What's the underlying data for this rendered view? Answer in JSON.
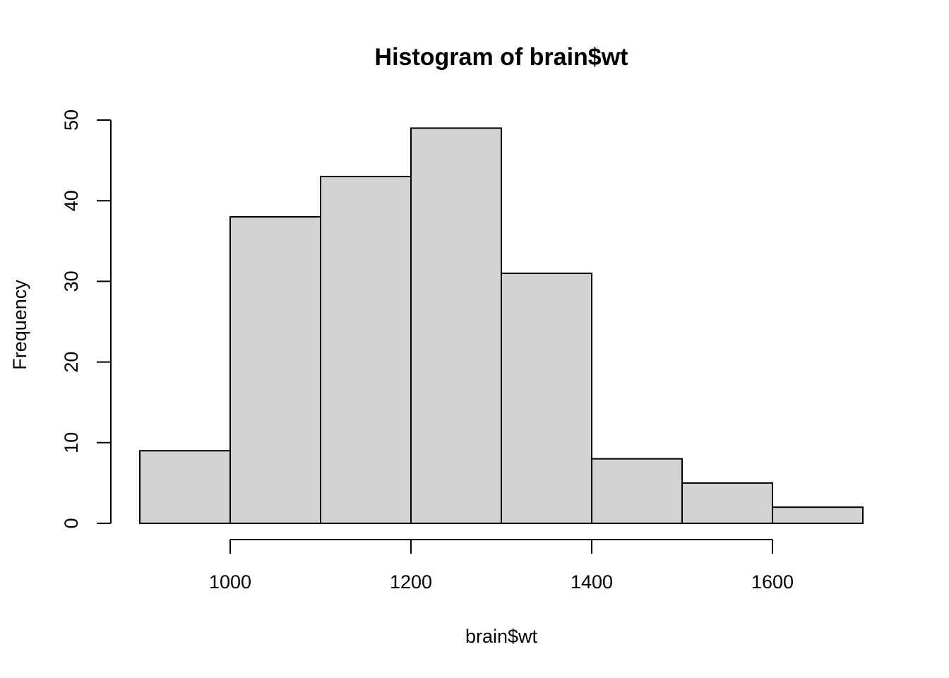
{
  "chart_data": {
    "type": "bar",
    "title": "Histogram of brain$wt",
    "xlabel": "brain$wt",
    "ylabel": "Frequency",
    "bins": [
      {
        "start": 900,
        "end": 1000,
        "count": 9
      },
      {
        "start": 1000,
        "end": 1100,
        "count": 38
      },
      {
        "start": 1100,
        "end": 1200,
        "count": 43
      },
      {
        "start": 1200,
        "end": 1300,
        "count": 49
      },
      {
        "start": 1300,
        "end": 1400,
        "count": 31
      },
      {
        "start": 1400,
        "end": 1500,
        "count": 8
      },
      {
        "start": 1500,
        "end": 1600,
        "count": 5
      },
      {
        "start": 1600,
        "end": 1700,
        "count": 2
      }
    ],
    "x_ticks": [
      "1000",
      "1200",
      "1400",
      "1600"
    ],
    "y_ticks": [
      "0",
      "10",
      "20",
      "30",
      "40",
      "50"
    ],
    "xlim": [
      900,
      1700
    ],
    "ylim": [
      0,
      50
    ],
    "grid": false
  }
}
